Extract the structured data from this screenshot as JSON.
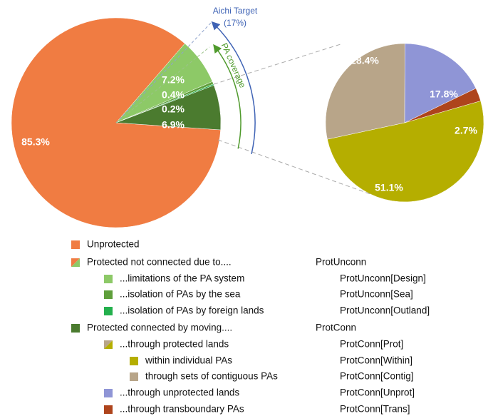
{
  "chart_data": [
    {
      "type": "pie",
      "values": [
        85.3,
        7.2,
        0.4,
        0.2,
        6.9
      ],
      "value_labels": [
        "85.3%",
        "7.2%",
        "0.4%",
        "0.2%",
        "6.9%"
      ],
      "colors": [
        "#f07c42",
        "#8dc967",
        "#5f9f3b",
        "#23b04d",
        "#4b7b2f"
      ]
    },
    {
      "type": "pie",
      "values": [
        51.1,
        28.4,
        17.8,
        2.7
      ],
      "value_labels": [
        "51.1%",
        "28.4%",
        "17.8%",
        "2.7%"
      ],
      "colors": [
        "#b5ae00",
        "#b8a589",
        "#8f95d6",
        "#ae441c"
      ]
    }
  ],
  "annotations": {
    "aichi_target": "Aichi Target",
    "aichi_value": "(17%)",
    "pa_coverage": "PA coverage"
  },
  "legend": [
    {
      "label": "Unprotected",
      "colors": [
        "#f07c42"
      ]
    },
    {
      "label": "Protected not connected due to....",
      "code": "ProtUnconn",
      "colors": [
        "#f07c42",
        "#8dc967"
      ]
    },
    {
      "label": "...limitations of the PA system",
      "code": "ProtUnconn[Design]",
      "colors": [
        "#8dc967"
      ]
    },
    {
      "label": "...isolation of PAs by the sea",
      "code": "ProtUnconn[Sea]",
      "colors": [
        "#5f9f3b"
      ]
    },
    {
      "label": "...isolation of PAs by foreign lands",
      "code": "ProtUnconn[Outland]",
      "colors": [
        "#23b04d"
      ]
    },
    {
      "label": "Protected connected by moving....",
      "code": "ProtConn",
      "colors": [
        "#4b7b2f"
      ]
    },
    {
      "label": "...through protected lands",
      "code": "ProtConn[Prot]",
      "colors": [
        "#b8a589",
        "#b5ae00"
      ]
    },
    {
      "label": "within individual PAs",
      "code": "ProtConn[Within]",
      "colors": [
        "#b5ae00"
      ]
    },
    {
      "label": "through sets of contiguous PAs",
      "code": "ProtConn[Contig]",
      "colors": [
        "#b8a589"
      ]
    },
    {
      "label": "...through unprotected lands",
      "code": "ProtConn[Unprot]",
      "colors": [
        "#8f95d6"
      ]
    },
    {
      "label": "...through transboundary PAs",
      "code": "ProtConn[Trans]",
      "colors": [
        "#ae441c"
      ]
    }
  ]
}
